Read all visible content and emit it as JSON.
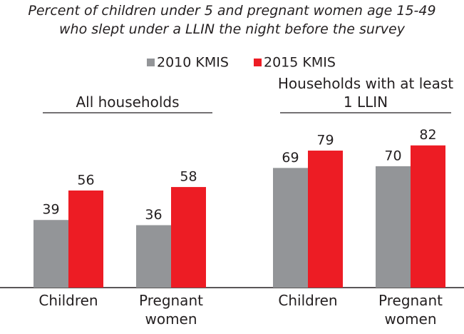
{
  "title": [
    "Percent of children under 5 and pregnant women age 15-49",
    "who slept under a LLIN the night before the survey"
  ],
  "chart_data": [
    {
      "type": "bar",
      "title": "All households",
      "categories": [
        "Children",
        "Pregnant women"
      ],
      "series": [
        {
          "name": "2010 KMIS",
          "color": "#939598",
          "values": [
            39,
            36
          ]
        },
        {
          "name": "2015 KMIS",
          "color": "#ed1c24",
          "values": [
            56,
            58
          ]
        }
      ],
      "ylim": [
        0,
        100
      ]
    },
    {
      "type": "bar",
      "title": "Households with at least 1 LLIN",
      "categories": [
        "Children",
        "Pregnant women"
      ],
      "series": [
        {
          "color": "#939598",
          "values": [
            69,
            70
          ]
        },
        {
          "color": "#ed1c24",
          "values": [
            79,
            82
          ]
        }
      ],
      "ylim": [
        0,
        100
      ]
    }
  ]
}
